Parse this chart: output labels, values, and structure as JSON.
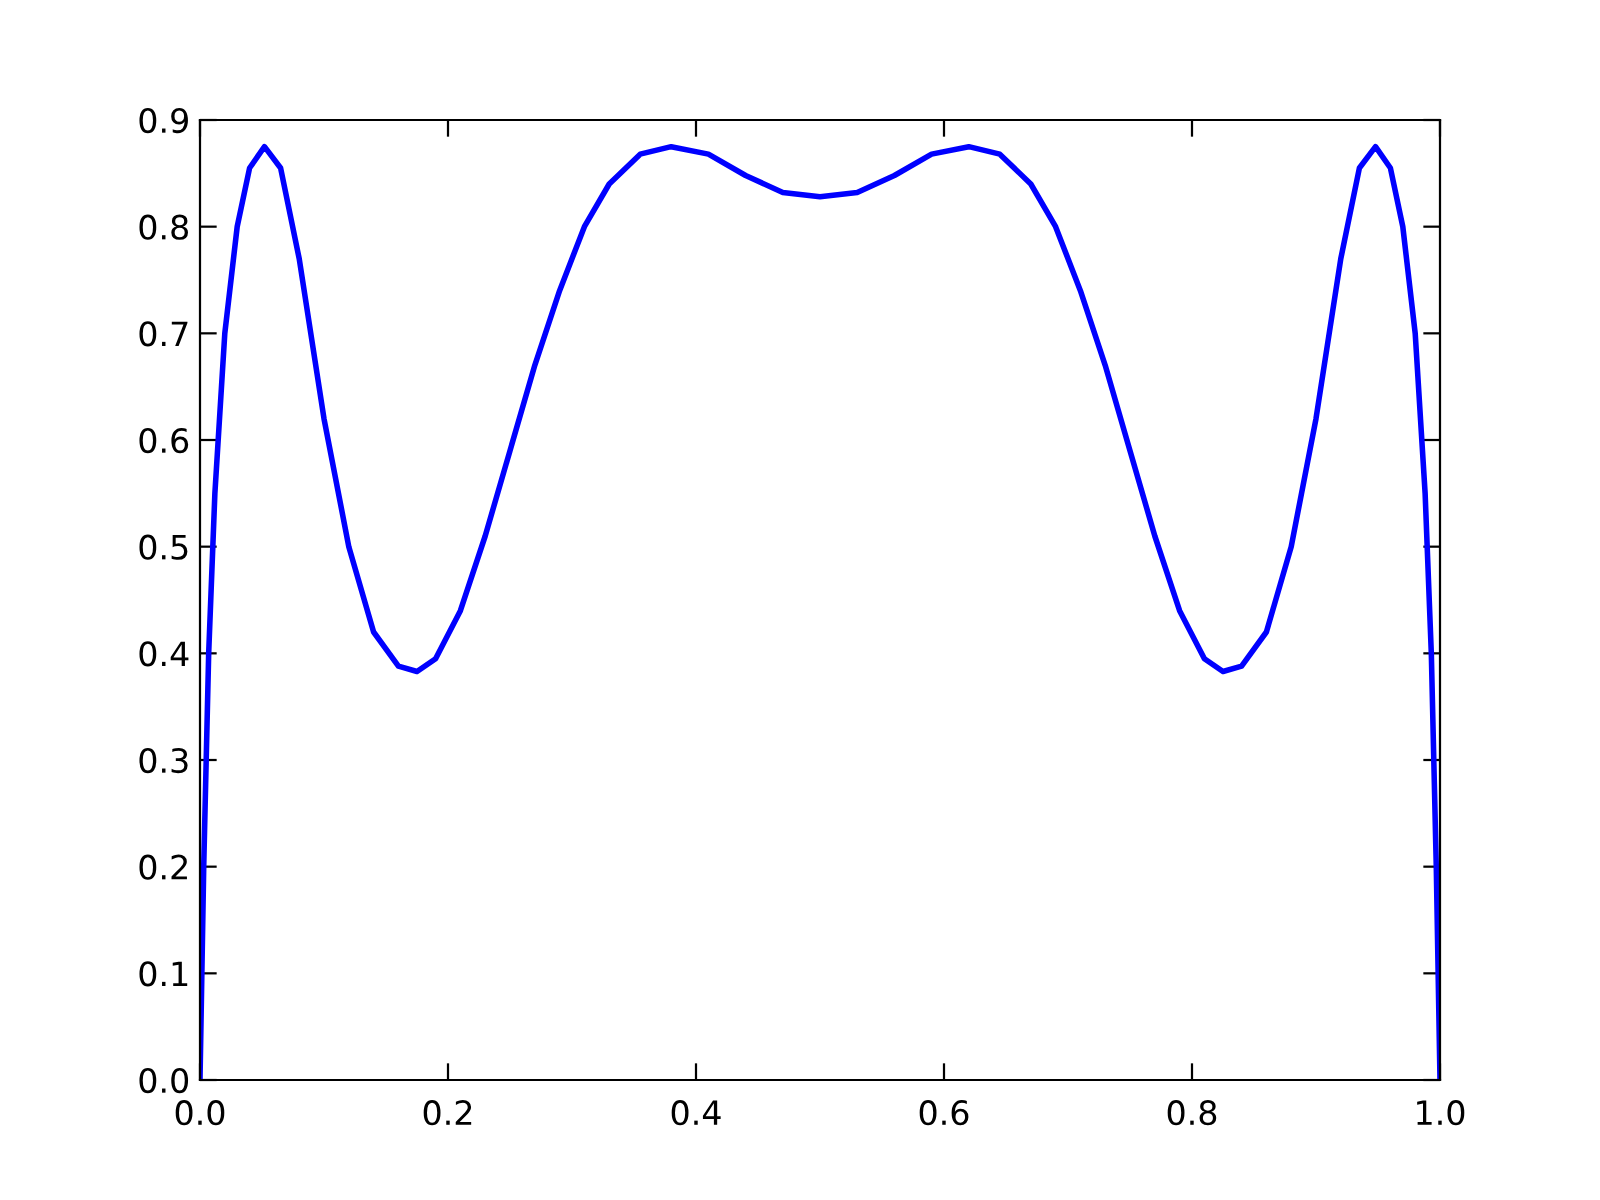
{
  "chart_data": {
    "type": "line",
    "x": [
      0,
      0.003,
      0.007,
      0.012,
      0.02,
      0.03,
      0.04,
      0.052,
      0.065,
      0.08,
      0.1,
      0.12,
      0.14,
      0.16,
      0.175,
      0.19,
      0.21,
      0.23,
      0.25,
      0.27,
      0.29,
      0.31,
      0.33,
      0.355,
      0.38,
      0.41,
      0.44,
      0.47,
      0.5,
      0.53,
      0.56,
      0.59,
      0.62,
      0.645,
      0.67,
      0.69,
      0.71,
      0.73,
      0.75,
      0.77,
      0.79,
      0.81,
      0.825,
      0.84,
      0.86,
      0.88,
      0.9,
      0.92,
      0.935,
      0.948,
      0.96,
      0.97,
      0.98,
      0.988,
      0.993,
      0.997,
      1
    ],
    "series": [
      {
        "color": "#0000ff",
        "values": [
          0,
          0.2,
          0.4,
          0.55,
          0.7,
          0.8,
          0.855,
          0.875,
          0.855,
          0.77,
          0.62,
          0.5,
          0.42,
          0.388,
          0.383,
          0.395,
          0.44,
          0.51,
          0.59,
          0.67,
          0.74,
          0.8,
          0.84,
          0.868,
          0.875,
          0.868,
          0.848,
          0.832,
          0.828,
          0.832,
          0.848,
          0.868,
          0.875,
          0.868,
          0.84,
          0.8,
          0.74,
          0.67,
          0.59,
          0.51,
          0.44,
          0.395,
          0.383,
          0.388,
          0.42,
          0.5,
          0.62,
          0.77,
          0.855,
          0.875,
          0.855,
          0.8,
          0.7,
          0.55,
          0.4,
          0.2,
          0
        ]
      }
    ],
    "xlim": [
      0,
      1
    ],
    "ylim": [
      0,
      0.9
    ],
    "xticks": [
      {
        "value": 0,
        "label": "0.0"
      },
      0.2,
      0.4,
      0.6,
      0.8,
      {
        "value": 1,
        "label": "1.0"
      }
    ],
    "yticks": [
      {
        "value": 0,
        "label": "0.0"
      },
      0.1,
      0.2,
      0.3,
      0.4,
      0.5,
      0.6,
      0.7,
      0.8,
      0.9
    ],
    "grid": false,
    "legend": false,
    "marker": "none",
    "line_style": "solid"
  }
}
